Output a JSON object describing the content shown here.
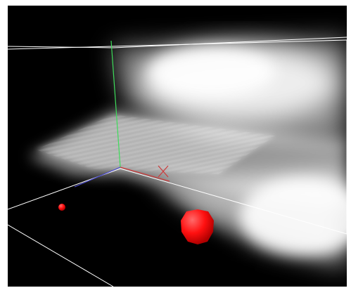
{
  "viewport": {
    "background": "#000000",
    "volume_color": "#ffffff",
    "axes": {
      "x_color": "#cc3a3a",
      "y_color": "#3ddc5a",
      "z_color": "#4b4bcf"
    },
    "bounding_box_color": "#ffffff",
    "markers": [
      {
        "name": "small-marker",
        "color": "#ff1010"
      },
      {
        "name": "large-marker",
        "color": "#ff1010"
      }
    ]
  }
}
